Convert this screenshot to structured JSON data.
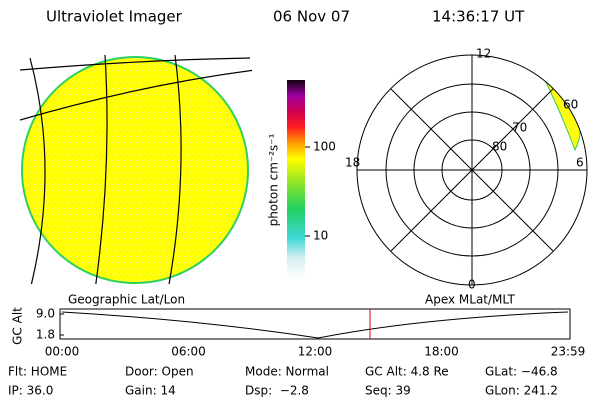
{
  "header": {
    "title": "Ultraviolet Imager",
    "date": "06 Nov 07",
    "time": "14:36:17 UT"
  },
  "colorbar": {
    "label": "photon cm⁻²s⁻¹",
    "scale": "log",
    "ticks": [
      10,
      100
    ]
  },
  "polar": {
    "mlt_labels": [
      "12",
      "18",
      "6",
      "0"
    ],
    "lat_labels": [
      "60",
      "70",
      "80"
    ]
  },
  "timeline": {
    "left_label": "Geographic Lat/Lon",
    "right_label": "Apex MLat/MLT",
    "y_label": "GC Alt",
    "yticks": [
      {
        "value": 9,
        "label": "9.0"
      },
      1.8
    ],
    "xticks": [
      "00:00",
      "06:00",
      "12:00",
      "18:00",
      "23:59"
    ]
  },
  "footer": {
    "rows": [
      [
        "Flt: HOME",
        "Door: Open",
        "Mode: Normal",
        "GC Alt: 4.8 Re",
        "GLat: −46.8"
      ],
      [
        "IP: 36.0",
        "Gain: 14",
        "Dsp:  −2.8",
        "Seq: 39",
        "GLon: 241.2"
      ]
    ]
  }
}
